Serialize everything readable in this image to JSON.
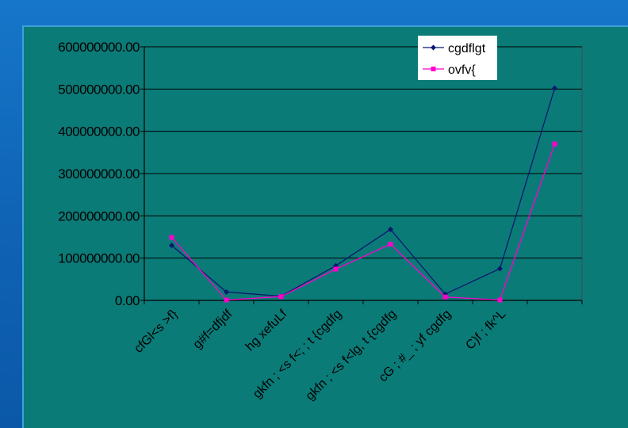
{
  "chart_data": {
    "type": "line",
    "categories": [
      "cfGl<s >f}",
      "g#f=dfjdf",
      "hg xefuLf",
      "gkfn ; <s f<; ; t {cgdfg",
      "gkfn ; <s f<lg, t {cgdfg",
      "cG ; #_ ; yf cgdfg",
      "C)f ; fk^L",
      ""
    ],
    "series": [
      {
        "name": "cgdflgt",
        "color": "#0a1a6e",
        "marker": "diamond",
        "values": [
          130000000,
          20000000,
          10000000,
          82000000,
          168000000,
          15000000,
          75000000,
          502000000
        ]
      },
      {
        "name": "ovfv{",
        "color": "#ff00cc",
        "marker": "square",
        "values": [
          149000000,
          1000000,
          9000000,
          74000000,
          133000000,
          8000000,
          1000000,
          370000000
        ]
      }
    ],
    "y_tick_labels": [
      "0.00",
      "100000000.00",
      "200000000.00",
      "300000000.00",
      "400000000.00",
      "500000000.00",
      "600000000.00"
    ],
    "ylim": [
      0,
      600000000
    ],
    "grid": "horizontal",
    "legend": "top-right",
    "colors": {
      "plot_background": "#0b7b78",
      "gridline": "#000000",
      "page_background": "#1068b8"
    }
  }
}
